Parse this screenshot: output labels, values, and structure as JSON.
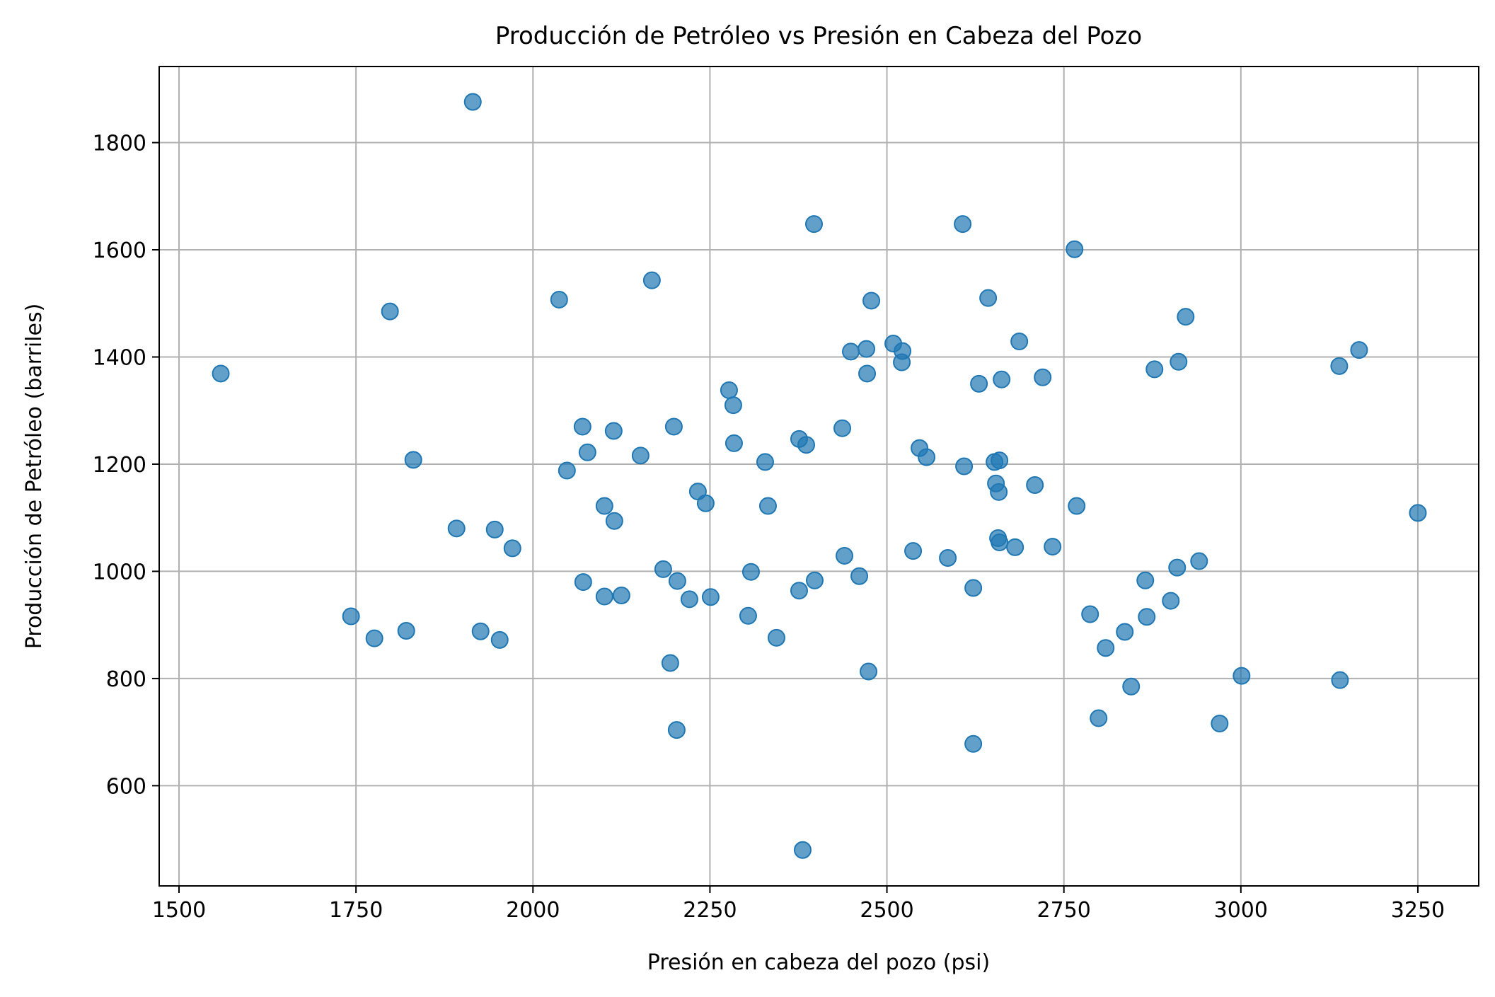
{
  "chart_data": {
    "type": "scatter",
    "title": "Producción de Petróleo vs Presión en Cabeza del Pozo",
    "xlabel": "Presión en cabeza del pozo (psi)",
    "ylabel": "Producción de Petróleo (barriles)",
    "xlim": [
      1472,
      3336
    ],
    "ylim": [
      413,
      1942
    ],
    "xticks": [
      1500,
      1750,
      2000,
      2250,
      2500,
      2750,
      3000,
      3250
    ],
    "yticks": [
      600,
      800,
      1000,
      1200,
      1400,
      1600,
      1800
    ],
    "grid": true,
    "color": "#1f77b4",
    "points": [
      [
        1559,
        1369
      ],
      [
        1743,
        916
      ],
      [
        1776,
        875
      ],
      [
        1798,
        1485
      ],
      [
        1821,
        889
      ],
      [
        1831,
        1208
      ],
      [
        1892,
        1080
      ],
      [
        1915,
        1876
      ],
      [
        1926,
        888
      ],
      [
        1946,
        1078
      ],
      [
        1953,
        872
      ],
      [
        1971,
        1043
      ],
      [
        2037,
        1507
      ],
      [
        2048,
        1188
      ],
      [
        2070,
        1270
      ],
      [
        2071,
        980
      ],
      [
        2077,
        1222
      ],
      [
        2101,
        1122
      ],
      [
        2101,
        953
      ],
      [
        2114,
        1262
      ],
      [
        2115,
        1094
      ],
      [
        2125,
        955
      ],
      [
        2152,
        1216
      ],
      [
        2168,
        1543
      ],
      [
        2184,
        1004
      ],
      [
        2194,
        829
      ],
      [
        2199,
        1270
      ],
      [
        2203,
        704
      ],
      [
        2204,
        982
      ],
      [
        2221,
        948
      ],
      [
        2233,
        1149
      ],
      [
        2244,
        1127
      ],
      [
        2251,
        952
      ],
      [
        2277,
        1338
      ],
      [
        2283,
        1310
      ],
      [
        2284,
        1239
      ],
      [
        2304,
        917
      ],
      [
        2308,
        999
      ],
      [
        2328,
        1204
      ],
      [
        2332,
        1122
      ],
      [
        2344,
        876
      ],
      [
        2376,
        1247
      ],
      [
        2376,
        964
      ],
      [
        2381,
        480
      ],
      [
        2386,
        1236
      ],
      [
        2397,
        1648
      ],
      [
        2398,
        983
      ],
      [
        2437,
        1267
      ],
      [
        2440,
        1029
      ],
      [
        2449,
        1410
      ],
      [
        2461,
        991
      ],
      [
        2471,
        1415
      ],
      [
        2472,
        1369
      ],
      [
        2474,
        813
      ],
      [
        2478,
        1505
      ],
      [
        2509,
        1425
      ],
      [
        2522,
        1411
      ],
      [
        2521,
        1390
      ],
      [
        2537,
        1038
      ],
      [
        2546,
        1230
      ],
      [
        2556,
        1213
      ],
      [
        2586,
        1025
      ],
      [
        2607,
        1648
      ],
      [
        2609,
        1196
      ],
      [
        2622,
        969
      ],
      [
        2622,
        678
      ],
      [
        2630,
        1350
      ],
      [
        2643,
        1510
      ],
      [
        2652,
        1204
      ],
      [
        2654,
        1164
      ],
      [
        2657,
        1062
      ],
      [
        2658,
        1148
      ],
      [
        2659,
        1207
      ],
      [
        2659,
        1054
      ],
      [
        2662,
        1358
      ],
      [
        2681,
        1045
      ],
      [
        2687,
        1429
      ],
      [
        2709,
        1161
      ],
      [
        2720,
        1362
      ],
      [
        2734,
        1046
      ],
      [
        2765,
        1601
      ],
      [
        2768,
        1122
      ],
      [
        2787,
        920
      ],
      [
        2799,
        726
      ],
      [
        2809,
        857
      ],
      [
        2836,
        887
      ],
      [
        2845,
        785
      ],
      [
        2865,
        983
      ],
      [
        2867,
        915
      ],
      [
        2878,
        1377
      ],
      [
        2901,
        945
      ],
      [
        2910,
        1007
      ],
      [
        2912,
        1391
      ],
      [
        2922,
        1475
      ],
      [
        2941,
        1019
      ],
      [
        2970,
        716
      ],
      [
        3001,
        805
      ],
      [
        3139,
        1383
      ],
      [
        3140,
        797
      ],
      [
        3167,
        1413
      ],
      [
        3250,
        1109
      ]
    ]
  }
}
